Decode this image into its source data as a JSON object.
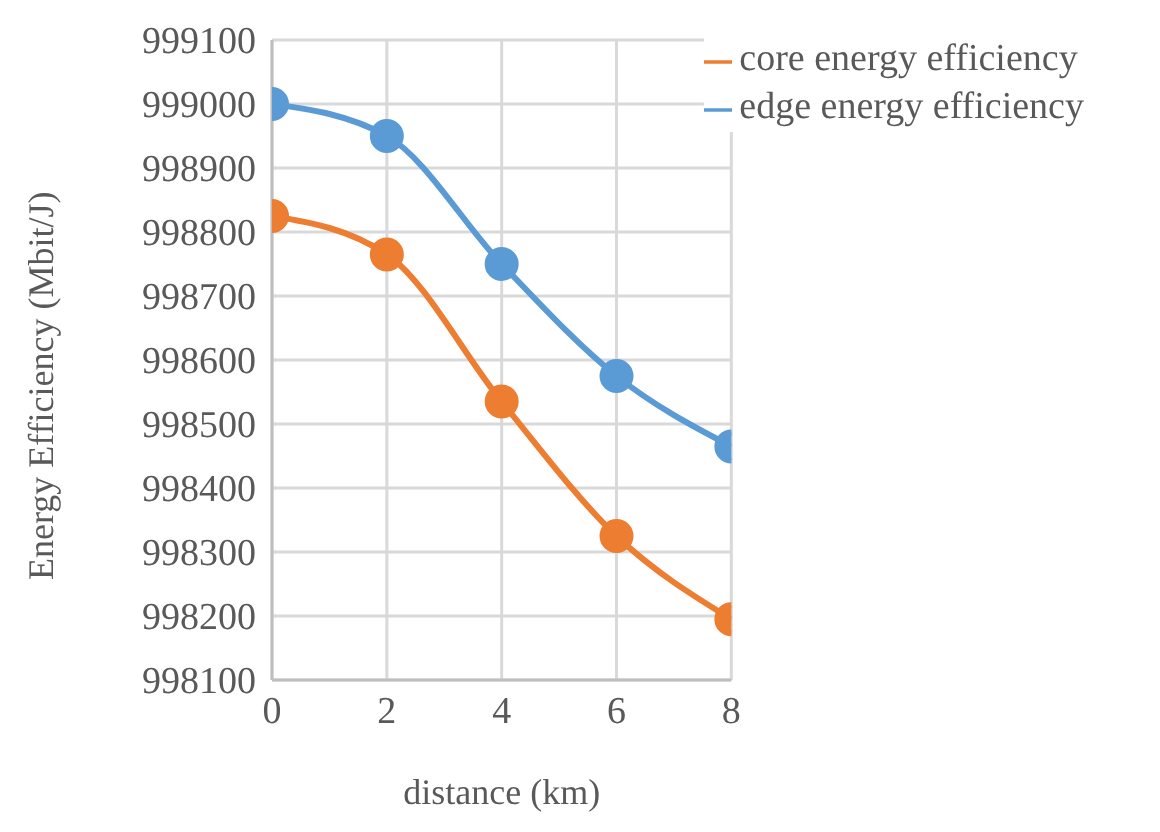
{
  "chart_data": {
    "type": "line",
    "xlabel": "distance (km)",
    "ylabel": "Energy Efficiency (Mbit/J)",
    "x": [
      0,
      2,
      4,
      6,
      8
    ],
    "series": [
      {
        "name": "edge energy efficiency",
        "color": "#5b9bd5",
        "values": [
          999000,
          998950,
          998750,
          998575,
          998465
        ]
      },
      {
        "name": "core energy efficiency",
        "color": "#ed7d31",
        "values": [
          998825,
          998765,
          998535,
          998325,
          998195
        ]
      }
    ],
    "xlim": [
      0,
      8
    ],
    "xticks": [
      0,
      2,
      4,
      6,
      8
    ],
    "ylim": [
      998100,
      999100
    ],
    "yticks": [
      998100,
      998200,
      998300,
      998400,
      998500,
      998600,
      998700,
      998800,
      998900,
      999000,
      999100
    ],
    "grid": true,
    "legend": "top right",
    "marker": "circle",
    "line_style": "solid"
  }
}
